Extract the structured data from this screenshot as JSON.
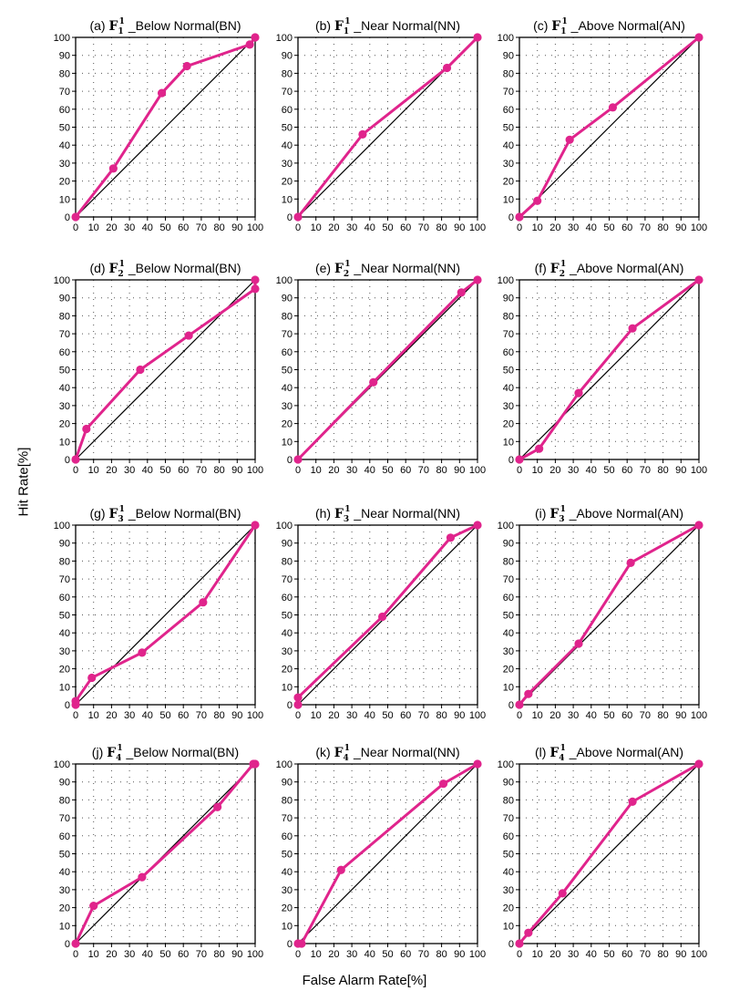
{
  "figure": {
    "ylabel": "Hit Rate[%]",
    "xlabel": "False Alarm Rate[%]"
  },
  "colors": {
    "series": "#e0248c",
    "diagonal": "#000000",
    "grid": "#555555"
  },
  "chart_data": [
    {
      "type": "line",
      "label": "(a)",
      "forecast": "F",
      "sub": "1",
      "sup": "1",
      "category": "_Below Normal(BN)",
      "xlim": [
        0,
        100
      ],
      "ylim": [
        0,
        100
      ],
      "ticks": [
        0,
        10,
        20,
        30,
        40,
        50,
        60,
        70,
        80,
        90,
        100
      ],
      "x": [
        0,
        21,
        48,
        62,
        97,
        100
      ],
      "y": [
        0,
        27,
        69,
        84,
        96,
        100
      ]
    },
    {
      "type": "line",
      "label": "(b)",
      "forecast": "F",
      "sub": "1",
      "sup": "1",
      "category": "_Near Normal(NN)",
      "xlim": [
        0,
        100
      ],
      "ylim": [
        0,
        100
      ],
      "ticks": [
        0,
        10,
        20,
        30,
        40,
        50,
        60,
        70,
        80,
        90,
        100
      ],
      "x": [
        0,
        36,
        83,
        100
      ],
      "y": [
        0,
        46,
        83,
        100
      ]
    },
    {
      "type": "line",
      "label": "(c)",
      "forecast": "F",
      "sub": "1",
      "sup": "1",
      "category": "_Above Normal(AN)",
      "xlim": [
        0,
        100
      ],
      "ylim": [
        0,
        100
      ],
      "ticks": [
        0,
        10,
        20,
        30,
        40,
        50,
        60,
        70,
        80,
        90,
        100
      ],
      "x": [
        0,
        10,
        28,
        52,
        100
      ],
      "y": [
        0,
        9,
        43,
        61,
        100
      ]
    },
    {
      "type": "line",
      "label": "(d)",
      "forecast": "F",
      "sub": "2",
      "sup": "1",
      "category": "_Below Normal(BN)",
      "xlim": [
        0,
        100
      ],
      "ylim": [
        0,
        100
      ],
      "ticks": [
        0,
        10,
        20,
        30,
        40,
        50,
        60,
        70,
        80,
        90,
        100
      ],
      "x": [
        0,
        6,
        36,
        63,
        100,
        100
      ],
      "y": [
        0,
        17,
        50,
        69,
        95,
        100
      ]
    },
    {
      "type": "line",
      "label": "(e)",
      "forecast": "F",
      "sub": "2",
      "sup": "1",
      "category": "_Near Normal(NN)",
      "xlim": [
        0,
        100
      ],
      "ylim": [
        0,
        100
      ],
      "ticks": [
        0,
        10,
        20,
        30,
        40,
        50,
        60,
        70,
        80,
        90,
        100
      ],
      "x": [
        0,
        42,
        91,
        100
      ],
      "y": [
        0,
        43,
        93,
        100
      ]
    },
    {
      "type": "line",
      "label": "(f)",
      "forecast": "F",
      "sub": "2",
      "sup": "1",
      "category": "_Above Normal(AN)",
      "xlim": [
        0,
        100
      ],
      "ylim": [
        0,
        100
      ],
      "ticks": [
        0,
        10,
        20,
        30,
        40,
        50,
        60,
        70,
        80,
        90,
        100
      ],
      "x": [
        0,
        11,
        33,
        63,
        100
      ],
      "y": [
        0,
        6,
        37,
        73,
        100
      ]
    },
    {
      "type": "line",
      "label": "(g)",
      "forecast": "F",
      "sub": "3",
      "sup": "1",
      "category": "_Below Normal(BN)",
      "xlim": [
        0,
        100
      ],
      "ylim": [
        0,
        100
      ],
      "ticks": [
        0,
        10,
        20,
        30,
        40,
        50,
        60,
        70,
        80,
        90,
        100
      ],
      "x": [
        0,
        0,
        9,
        37,
        71,
        100
      ],
      "y": [
        0,
        2,
        15,
        29,
        57,
        100
      ]
    },
    {
      "type": "line",
      "label": "(h)",
      "forecast": "F",
      "sub": "3",
      "sup": "1",
      "category": "_Near Normal(NN)",
      "xlim": [
        0,
        100
      ],
      "ylim": [
        0,
        100
      ],
      "ticks": [
        0,
        10,
        20,
        30,
        40,
        50,
        60,
        70,
        80,
        90,
        100
      ],
      "x": [
        0,
        0,
        47,
        85,
        100
      ],
      "y": [
        0,
        4,
        49,
        93,
        100
      ]
    },
    {
      "type": "line",
      "label": "(i)",
      "forecast": "F",
      "sub": "3",
      "sup": "1",
      "category": "_Above Normal(AN)",
      "xlim": [
        0,
        100
      ],
      "ylim": [
        0,
        100
      ],
      "ticks": [
        0,
        10,
        20,
        30,
        40,
        50,
        60,
        70,
        80,
        90,
        100
      ],
      "x": [
        0,
        5,
        33,
        62,
        100
      ],
      "y": [
        0,
        6,
        34,
        79,
        100
      ]
    },
    {
      "type": "line",
      "label": "(j)",
      "forecast": "F",
      "sub": "4",
      "sup": "1",
      "category": "_Below Normal(BN)",
      "xlim": [
        0,
        100
      ],
      "ylim": [
        0,
        100
      ],
      "ticks": [
        0,
        10,
        20,
        30,
        40,
        50,
        60,
        70,
        80,
        90,
        100
      ],
      "x": [
        0,
        10,
        37,
        79,
        99,
        100
      ],
      "y": [
        0,
        21,
        37,
        76,
        100,
        100
      ]
    },
    {
      "type": "line",
      "label": "(k)",
      "forecast": "F",
      "sub": "4",
      "sup": "1",
      "category": "_Near Normal(NN)",
      "xlim": [
        0,
        100
      ],
      "ylim": [
        0,
        100
      ],
      "ticks": [
        0,
        10,
        20,
        30,
        40,
        50,
        60,
        70,
        80,
        90,
        100
      ],
      "x": [
        0,
        2,
        24,
        81,
        100
      ],
      "y": [
        0,
        0,
        41,
        89,
        100
      ]
    },
    {
      "type": "line",
      "label": "(l)",
      "forecast": "F",
      "sub": "4",
      "sup": "1",
      "category": "_Above Normal(AN)",
      "xlim": [
        0,
        100
      ],
      "ylim": [
        0,
        100
      ],
      "ticks": [
        0,
        10,
        20,
        30,
        40,
        50,
        60,
        70,
        80,
        90,
        100
      ],
      "x": [
        0,
        5,
        24,
        63,
        100
      ],
      "y": [
        0,
        6,
        28,
        79,
        100
      ]
    }
  ]
}
